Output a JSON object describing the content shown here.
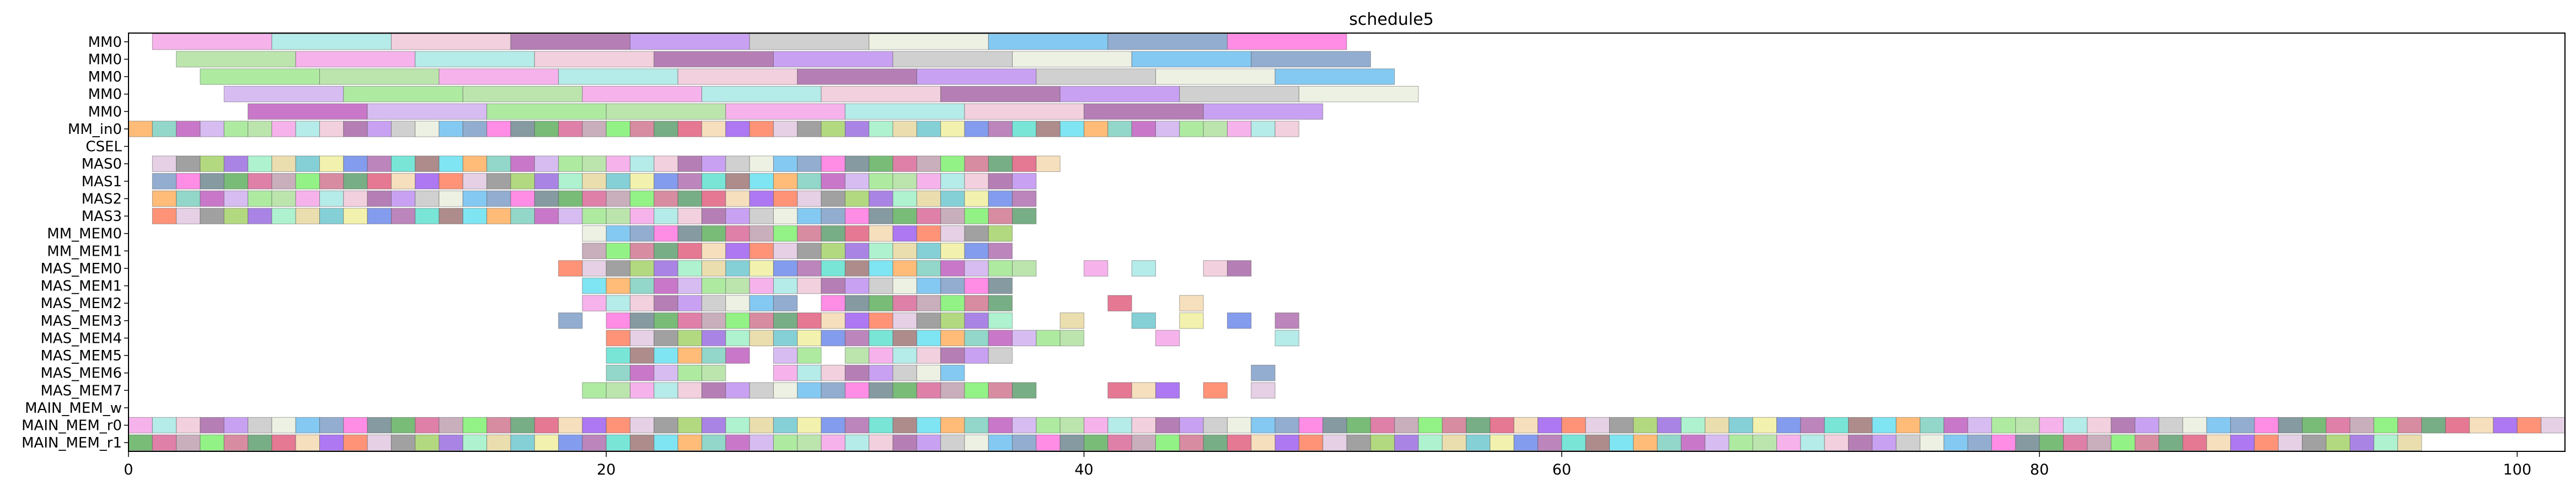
{
  "chart_data": {
    "type": "gantt",
    "title": "schedule5",
    "xlabel": "",
    "ylabel": "",
    "xlim": [
      0,
      102
    ],
    "x_ticks": [
      0,
      20,
      40,
      60,
      80,
      100
    ],
    "x_tick_labels": [
      "0",
      "20",
      "40",
      "60",
      "80",
      "100"
    ],
    "rows": [
      "MM0",
      "MM0",
      "MM0",
      "MM0",
      "MM0",
      "MM_in0",
      "CSEL",
      "MAS0",
      "MAS1",
      "MAS2",
      "MAS3",
      "MM_MEM0",
      "MM_MEM1",
      "MAS_MEM0",
      "MAS_MEM1",
      "MAS_MEM2",
      "MAS_MEM3",
      "MAS_MEM4",
      "MAS_MEM5",
      "MAS_MEM6",
      "MAS_MEM7",
      "MAIN_MEM_w",
      "MAIN_MEM_r0",
      "MAIN_MEM_r1"
    ],
    "palette": [
      "#f4a6e8",
      "#a6d26a",
      "#eaeede",
      "#6f8bea",
      "#d96a9a",
      "#7fd0c0",
      "#f5d9b0",
      "#a8e8e4",
      "#9b6fe0",
      "#6fc0f0",
      "#b070b0",
      "#c0a0b0",
      "#c060c0",
      "#9f60f0",
      "#f0c8d8",
      "#a0f0c8",
      "#7f9fc8",
      "#60e0d0",
      "#80f070",
      "#d0b0f0",
      "#ff8060",
      "#a868a8",
      "#e8d8a0",
      "#ff78e0",
      "#a07878",
      "#d07890",
      "#a0e890",
      "#e0c8e0",
      "#c090f0",
      "#70c8d0",
      "#708890",
      "#68e0f0",
      "#60a070",
      "#b0e0a0",
      "#909090",
      "#c8c8c8",
      "#f0f0a0",
      "#60b060",
      "#ffb060",
      "#e06080"
    ],
    "bars": [
      {
        "row": 0,
        "intervals": [
          [
            1,
            6
          ],
          [
            6,
            11
          ],
          [
            11,
            16
          ],
          [
            16,
            21
          ],
          [
            21,
            26
          ],
          [
            26,
            31
          ],
          [
            31,
            36
          ],
          [
            36,
            41
          ],
          [
            41,
            46
          ],
          [
            46,
            51
          ]
        ]
      },
      {
        "row": 1,
        "intervals": [
          [
            2,
            7
          ],
          [
            7,
            12
          ],
          [
            12,
            17
          ],
          [
            17,
            22
          ],
          [
            22,
            27
          ],
          [
            27,
            32
          ],
          [
            32,
            37
          ],
          [
            37,
            42
          ],
          [
            42,
            47
          ],
          [
            47,
            52
          ]
        ]
      },
      {
        "row": 2,
        "intervals": [
          [
            3,
            8
          ],
          [
            8,
            13
          ],
          [
            13,
            18
          ],
          [
            18,
            23
          ],
          [
            23,
            28
          ],
          [
            28,
            33
          ],
          [
            33,
            38
          ],
          [
            38,
            43
          ],
          [
            43,
            48
          ],
          [
            48,
            53
          ]
        ]
      },
      {
        "row": 3,
        "intervals": [
          [
            4,
            9
          ],
          [
            9,
            14
          ],
          [
            14,
            19
          ],
          [
            19,
            24
          ],
          [
            24,
            29
          ],
          [
            29,
            34
          ],
          [
            34,
            39
          ],
          [
            39,
            44
          ],
          [
            44,
            49
          ],
          [
            49,
            54
          ]
        ]
      },
      {
        "row": 4,
        "intervals": [
          [
            5,
            10
          ],
          [
            10,
            15
          ],
          [
            15,
            20
          ],
          [
            20,
            25
          ],
          [
            25,
            30
          ],
          [
            30,
            35
          ],
          [
            35,
            40
          ],
          [
            40,
            45
          ],
          [
            45,
            50
          ]
        ]
      },
      {
        "row": 5,
        "start": 0,
        "end": 49,
        "step": 1
      },
      {
        "row": 7,
        "start": 1,
        "end": 39,
        "step": 1
      },
      {
        "row": 8,
        "start": 1,
        "end": 38,
        "step": 1
      },
      {
        "row": 9,
        "start": 1,
        "end": 38,
        "step": 1
      },
      {
        "row": 10,
        "start": 1,
        "end": 38,
        "step": 1
      },
      {
        "row": 11,
        "start": 19,
        "end": 37,
        "step": 1
      },
      {
        "row": 12,
        "start": 19,
        "end": 37,
        "step": 1
      },
      {
        "row": 13,
        "intervals": [
          [
            18,
            19
          ],
          [
            19,
            20
          ],
          [
            20,
            21
          ],
          [
            21,
            22
          ],
          [
            22,
            23
          ],
          [
            23,
            24
          ],
          [
            24,
            25
          ],
          [
            25,
            26
          ],
          [
            26,
            27
          ],
          [
            27,
            28
          ],
          [
            28,
            29
          ],
          [
            29,
            30
          ],
          [
            30,
            31
          ],
          [
            31,
            32
          ],
          [
            32,
            33
          ],
          [
            33,
            34
          ],
          [
            34,
            35
          ],
          [
            35,
            36
          ],
          [
            36,
            37
          ],
          [
            37,
            38
          ],
          [
            40,
            41
          ],
          [
            42,
            43
          ],
          [
            45,
            46
          ],
          [
            46,
            47
          ]
        ]
      },
      {
        "row": 14,
        "start": 19,
        "end": 37,
        "step": 1
      },
      {
        "row": 15,
        "intervals": [
          [
            19,
            20
          ],
          [
            20,
            21
          ],
          [
            21,
            22
          ],
          [
            22,
            23
          ],
          [
            23,
            24
          ],
          [
            24,
            25
          ],
          [
            25,
            26
          ],
          [
            26,
            27
          ],
          [
            27,
            28
          ],
          [
            29,
            30
          ],
          [
            30,
            31
          ],
          [
            31,
            32
          ],
          [
            32,
            33
          ],
          [
            33,
            34
          ],
          [
            34,
            35
          ],
          [
            35,
            36
          ],
          [
            36,
            37
          ],
          [
            41,
            42
          ],
          [
            44,
            45
          ]
        ]
      },
      {
        "row": 16,
        "intervals": [
          [
            18,
            19
          ],
          [
            20,
            21
          ],
          [
            21,
            22
          ],
          [
            22,
            23
          ],
          [
            23,
            24
          ],
          [
            24,
            25
          ],
          [
            25,
            26
          ],
          [
            26,
            27
          ],
          [
            27,
            28
          ],
          [
            28,
            29
          ],
          [
            29,
            30
          ],
          [
            30,
            31
          ],
          [
            31,
            32
          ],
          [
            32,
            33
          ],
          [
            33,
            34
          ],
          [
            34,
            35
          ],
          [
            35,
            36
          ],
          [
            36,
            37
          ],
          [
            39,
            40
          ],
          [
            42,
            43
          ],
          [
            44,
            45
          ],
          [
            46,
            47
          ],
          [
            48,
            49
          ]
        ]
      },
      {
        "row": 17,
        "intervals": [
          [
            20,
            21
          ],
          [
            21,
            22
          ],
          [
            22,
            23
          ],
          [
            23,
            24
          ],
          [
            24,
            25
          ],
          [
            25,
            26
          ],
          [
            26,
            27
          ],
          [
            27,
            28
          ],
          [
            28,
            29
          ],
          [
            29,
            30
          ],
          [
            30,
            31
          ],
          [
            31,
            32
          ],
          [
            32,
            33
          ],
          [
            33,
            34
          ],
          [
            34,
            35
          ],
          [
            35,
            36
          ],
          [
            36,
            37
          ],
          [
            37,
            38
          ],
          [
            38,
            39
          ],
          [
            39,
            40
          ],
          [
            43,
            44
          ],
          [
            48,
            49
          ]
        ]
      },
      {
        "row": 18,
        "intervals": [
          [
            20,
            21
          ],
          [
            21,
            22
          ],
          [
            22,
            23
          ],
          [
            23,
            24
          ],
          [
            24,
            25
          ],
          [
            25,
            26
          ],
          [
            27,
            28
          ],
          [
            28,
            29
          ],
          [
            30,
            31
          ],
          [
            31,
            32
          ],
          [
            32,
            33
          ],
          [
            33,
            34
          ],
          [
            34,
            35
          ],
          [
            35,
            36
          ],
          [
            36,
            37
          ]
        ]
      },
      {
        "row": 19,
        "intervals": [
          [
            20,
            21
          ],
          [
            21,
            22
          ],
          [
            22,
            23
          ],
          [
            23,
            24
          ],
          [
            24,
            25
          ],
          [
            27,
            28
          ],
          [
            28,
            29
          ],
          [
            29,
            30
          ],
          [
            30,
            31
          ],
          [
            31,
            32
          ],
          [
            32,
            33
          ],
          [
            33,
            34
          ],
          [
            34,
            35
          ],
          [
            47,
            48
          ]
        ]
      },
      {
        "row": 20,
        "intervals": [
          [
            19,
            20
          ],
          [
            20,
            21
          ],
          [
            21,
            22
          ],
          [
            22,
            23
          ],
          [
            23,
            24
          ],
          [
            24,
            25
          ],
          [
            25,
            26
          ],
          [
            26,
            27
          ],
          [
            27,
            28
          ],
          [
            28,
            29
          ],
          [
            29,
            30
          ],
          [
            30,
            31
          ],
          [
            31,
            32
          ],
          [
            32,
            33
          ],
          [
            33,
            34
          ],
          [
            34,
            35
          ],
          [
            35,
            36
          ],
          [
            36,
            37
          ],
          [
            37,
            38
          ],
          [
            41,
            42
          ],
          [
            42,
            43
          ],
          [
            43,
            44
          ],
          [
            45,
            46
          ],
          [
            47,
            48
          ]
        ]
      },
      {
        "row": 22,
        "start": 0,
        "end": 102,
        "step": 1
      },
      {
        "row": 23,
        "start": 0,
        "end": 96,
        "step": 1
      }
    ]
  }
}
